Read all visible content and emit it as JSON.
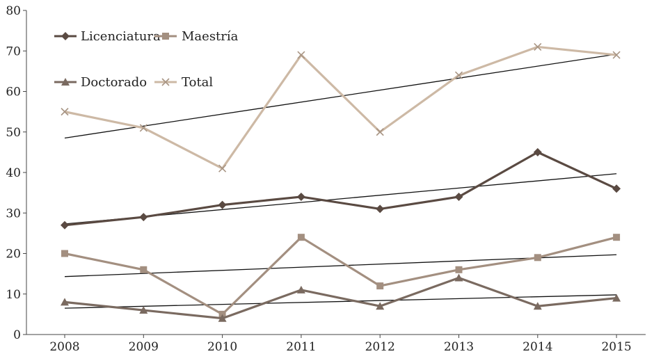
{
  "chart_data": {
    "type": "line",
    "title": "",
    "xlabel": "",
    "ylabel": "",
    "x": [
      "2008",
      "2009",
      "2010",
      "2011",
      "2012",
      "2013",
      "2014",
      "2015"
    ],
    "ylim": [
      0,
      80
    ],
    "yticks": [
      "0",
      "10",
      "20",
      "30",
      "40",
      "50",
      "60",
      "70",
      "80"
    ],
    "grid": false,
    "legend": "top-left",
    "series": [
      {
        "name": "Licenciatura",
        "values": [
          27,
          29,
          32,
          34,
          31,
          34,
          45,
          36
        ],
        "color": "#5a4a42",
        "marker": "diamond"
      },
      {
        "name": "Maestría",
        "values": [
          20,
          16,
          5,
          24,
          12,
          16,
          19,
          24
        ],
        "color": "#a38f80",
        "marker": "square"
      },
      {
        "name": "Doctorado",
        "values": [
          8,
          6,
          4,
          11,
          7,
          14,
          7,
          9
        ],
        "color": "#7a6a60",
        "marker": "triangle"
      },
      {
        "name": "Total",
        "values": [
          55,
          51,
          41,
          69,
          50,
          64,
          71,
          69
        ],
        "color": "#cdb9a5",
        "marker": "x"
      }
    ],
    "trendlines": [
      {
        "series": "Total",
        "start": 48.5,
        "end": 69.2
      },
      {
        "series": "Licenciatura",
        "start": 27.3,
        "end": 39.7
      },
      {
        "series": "Maestría",
        "start": 14.3,
        "end": 19.7
      },
      {
        "series": "Doctorado",
        "start": 6.5,
        "end": 9.8
      }
    ]
  }
}
